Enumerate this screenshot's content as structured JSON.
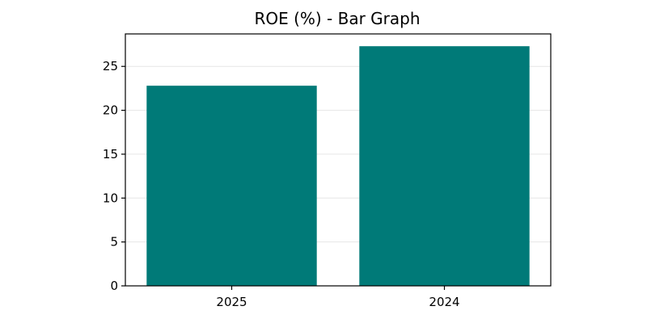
{
  "chart_data": {
    "type": "bar",
    "title": "ROE (%) - Bar Graph",
    "xlabel": "",
    "ylabel": "",
    "categories": [
      "2025",
      "2024"
    ],
    "values": [
      22.8,
      27.3
    ],
    "ylim": [
      0,
      28.7
    ],
    "yticks": [
      0,
      5,
      10,
      15,
      20,
      25
    ],
    "ytick_labels": [
      "0",
      "5",
      "10",
      "15",
      "20",
      "25"
    ],
    "grid": true,
    "legend": "none",
    "bar_color": "#007a78"
  }
}
